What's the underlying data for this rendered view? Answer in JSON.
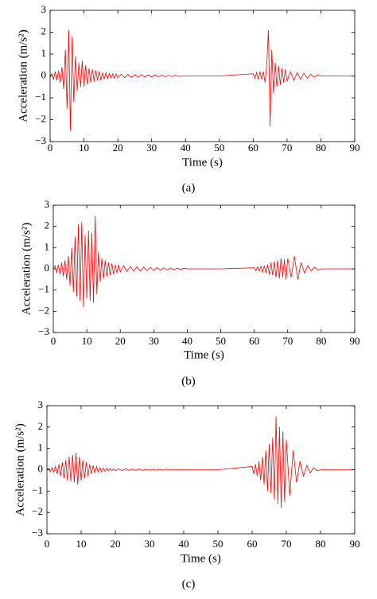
{
  "chart_data": [
    {
      "type": "line",
      "caption": "(a)",
      "xlabel": "Time (s)",
      "ylabel": "Acceleration (m/s²)",
      "x": [
        0,
        0.5,
        1,
        1.5,
        2,
        2.5,
        3,
        3.5,
        4,
        4.5,
        5,
        5.5,
        6,
        6.5,
        7,
        7.5,
        8,
        8.5,
        9,
        9.5,
        10,
        10.5,
        11,
        11.5,
        12,
        12.5,
        13,
        13.5,
        14,
        14.5,
        15,
        15.5,
        16,
        16.5,
        17,
        17.5,
        18,
        18.5,
        19,
        19.5,
        20,
        21,
        22,
        23,
        24,
        25,
        26,
        27,
        28,
        29,
        30,
        31,
        32,
        33,
        34,
        35,
        36,
        37,
        38,
        39,
        40,
        50,
        60,
        60.5,
        61,
        61.5,
        62,
        62.5,
        63,
        63.5,
        64,
        64.5,
        65,
        65.5,
        66,
        66.5,
        67,
        67.5,
        68,
        68.5,
        69,
        69.5,
        70,
        71,
        72,
        73,
        74,
        75,
        76,
        77,
        78,
        79,
        80,
        90
      ],
      "series": [
        {
          "color": "#ff0000",
          "values": [
            0,
            0.1,
            -0.15,
            0.2,
            -0.2,
            0.25,
            -0.3,
            0.4,
            -0.6,
            1.2,
            -1.5,
            2.1,
            -2.5,
            1.8,
            -1.2,
            0.9,
            -0.7,
            0.6,
            -0.5,
            0.7,
            -0.5,
            0.5,
            -0.4,
            0.35,
            -0.3,
            0.3,
            -0.25,
            0.25,
            -0.2,
            0.2,
            -0.2,
            0.15,
            -0.15,
            0.15,
            -0.12,
            0.12,
            -0.1,
            0.1,
            -0.1,
            0.1,
            -0.08,
            0.08,
            -0.08,
            0.07,
            -0.07,
            0.06,
            -0.06,
            0.06,
            -0.05,
            0.05,
            -0.05,
            0.05,
            -0.04,
            0.04,
            -0.04,
            0.03,
            -0.03,
            0.03,
            -0.02,
            0,
            0,
            0,
            0.1,
            -0.1,
            0.15,
            -0.15,
            0.2,
            -0.15,
            0.2,
            -0.3,
            0.5,
            2.1,
            -2.3,
            1.2,
            -0.8,
            0.6,
            -0.5,
            0.45,
            -0.4,
            0.35,
            -0.3,
            0.3,
            -0.25,
            0.2,
            -0.2,
            0.15,
            -0.15,
            0.12,
            -0.1,
            0.08,
            -0.06,
            0.05,
            0,
            0
          ]
        }
      ],
      "xlim": [
        0,
        90
      ],
      "xticks": [
        0,
        10,
        20,
        30,
        40,
        50,
        60,
        70,
        80,
        90
      ],
      "ylim": [
        -3,
        3
      ],
      "yticks": [
        {
          "value": -3,
          "label": "−3"
        },
        {
          "value": -2,
          "label": "−2"
        },
        {
          "value": -1,
          "label": "−1"
        },
        0,
        1,
        2,
        3
      ]
    },
    {
      "type": "line",
      "caption": "(b)",
      "xlabel": "Time (s)",
      "ylabel": "Acceleration (m/s²)",
      "x": [
        0,
        0.5,
        1,
        1.5,
        2,
        2.5,
        3,
        3.5,
        4,
        4.5,
        5,
        5.5,
        6,
        6.5,
        7,
        7.5,
        8,
        8.5,
        9,
        9.5,
        10,
        10.5,
        11,
        11.5,
        12,
        12.5,
        13,
        13.5,
        14,
        14.5,
        15,
        15.5,
        16,
        16.5,
        17,
        17.5,
        18,
        18.5,
        19,
        19.5,
        20,
        21,
        22,
        23,
        24,
        25,
        26,
        27,
        28,
        29,
        30,
        31,
        32,
        33,
        34,
        35,
        36,
        37,
        38,
        39,
        40,
        50,
        60,
        60.5,
        61,
        61.5,
        62,
        62.5,
        63,
        63.5,
        64,
        64.5,
        65,
        65.5,
        66,
        66.5,
        67,
        67.5,
        68,
        68.5,
        69,
        69.5,
        70,
        71,
        72,
        73,
        74,
        75,
        76,
        77,
        78,
        79,
        80,
        90
      ],
      "series": [
        {
          "color": "#ff0000",
          "values": [
            0,
            0.15,
            -0.2,
            0.2,
            -0.25,
            0.3,
            -0.35,
            0.4,
            -0.5,
            0.6,
            -0.8,
            1.0,
            -1.1,
            1.5,
            -1.3,
            2.1,
            -1.5,
            2.2,
            -1.8,
            1.6,
            -1.4,
            1.8,
            -1.5,
            1.7,
            -1.6,
            2.5,
            -1.2,
            0.8,
            -0.6,
            0.5,
            -0.45,
            0.4,
            -0.35,
            0.3,
            -0.3,
            0.25,
            -0.25,
            0.2,
            -0.2,
            0.2,
            -0.15,
            0.15,
            -0.12,
            0.12,
            -0.1,
            0.1,
            -0.1,
            0.08,
            -0.08,
            0.07,
            -0.07,
            0.06,
            -0.06,
            0.05,
            -0.05,
            0.04,
            -0.04,
            0.03,
            -0.03,
            0.02,
            0,
            0,
            0.05,
            -0.08,
            0.1,
            -0.1,
            0.12,
            -0.15,
            0.15,
            -0.2,
            0.2,
            -0.25,
            0.3,
            -0.3,
            0.35,
            -0.4,
            0.4,
            -0.45,
            0.5,
            -0.4,
            0.45,
            -0.5,
            0.5,
            -0.4,
            0.6,
            -0.5,
            0.3,
            -0.2,
            0.15,
            -0.1,
            0.08,
            -0.05,
            0,
            0
          ]
        }
      ],
      "xlim": [
        0,
        90
      ],
      "xticks": [
        0,
        10,
        20,
        30,
        40,
        50,
        60,
        70,
        80,
        90
      ],
      "ylim": [
        -3,
        3
      ],
      "yticks": [
        {
          "value": -3,
          "label": "−3"
        },
        {
          "value": -2,
          "label": "−2"
        },
        {
          "value": -1,
          "label": "−1"
        },
        0,
        1,
        2,
        3
      ]
    },
    {
      "type": "line",
      "caption": "(c)",
      "xlabel": "Time (s)",
      "ylabel": "Acceleration (m/s²)",
      "x": [
        0,
        0.5,
        1,
        1.5,
        2,
        2.5,
        3,
        3.5,
        4,
        4.5,
        5,
        5.5,
        6,
        6.5,
        7,
        7.5,
        8,
        8.5,
        9,
        9.5,
        10,
        10.5,
        11,
        11.5,
        12,
        12.5,
        13,
        13.5,
        14,
        14.5,
        15,
        15.5,
        16,
        16.5,
        17,
        17.5,
        18,
        18.5,
        19,
        19.5,
        20,
        21,
        22,
        23,
        24,
        25,
        26,
        27,
        28,
        29,
        30,
        31,
        32,
        33,
        34,
        35,
        36,
        37,
        38,
        39,
        40,
        50,
        60,
        60.5,
        61,
        61.5,
        62,
        62.5,
        63,
        63.5,
        64,
        64.5,
        65,
        65.5,
        66,
        66.5,
        67,
        67.5,
        68,
        68.5,
        69,
        69.5,
        70,
        71,
        72,
        73,
        74,
        75,
        76,
        77,
        78,
        79,
        80,
        90
      ],
      "series": [
        {
          "color": "#ff0000",
          "values": [
            0,
            0.08,
            -0.1,
            0.1,
            -0.12,
            0.15,
            -0.2,
            0.25,
            -0.3,
            0.35,
            -0.4,
            0.45,
            -0.5,
            0.6,
            -0.55,
            0.7,
            -0.6,
            0.8,
            -0.7,
            0.6,
            -0.5,
            0.45,
            -0.4,
            0.35,
            -0.3,
            0.25,
            -0.2,
            0.2,
            -0.15,
            0.15,
            -0.12,
            0.1,
            -0.1,
            0.08,
            -0.08,
            0.07,
            -0.06,
            0.06,
            -0.05,
            0.05,
            -0.05,
            0.04,
            -0.04,
            0.04,
            -0.03,
            0.03,
            -0.03,
            0.03,
            -0.03,
            0.02,
            -0.02,
            0.02,
            -0.02,
            0.02,
            -0.02,
            0.02,
            -0.02,
            0.01,
            -0.01,
            0.01,
            0,
            0,
            0.15,
            -0.2,
            0.25,
            -0.3,
            0.4,
            -0.5,
            0.6,
            -0.7,
            0.9,
            -1.0,
            1.2,
            -1.1,
            1.5,
            -1.4,
            2.5,
            -1.6,
            2.0,
            -1.8,
            1.8,
            -1.5,
            1.4,
            -1.2,
            0.9,
            -0.6,
            0.4,
            -0.3,
            0.2,
            -0.15,
            0.1,
            -0.05,
            0,
            0
          ]
        }
      ],
      "xlim": [
        0,
        90
      ],
      "xticks": [
        0,
        10,
        20,
        30,
        40,
        50,
        60,
        70,
        80,
        90
      ],
      "ylim": [
        -3,
        3
      ],
      "yticks": [
        {
          "value": -3,
          "label": "−3"
        },
        {
          "value": -2,
          "label": "−2"
        },
        {
          "value": -1,
          "label": "−1"
        },
        0,
        1,
        2,
        3
      ]
    }
  ]
}
